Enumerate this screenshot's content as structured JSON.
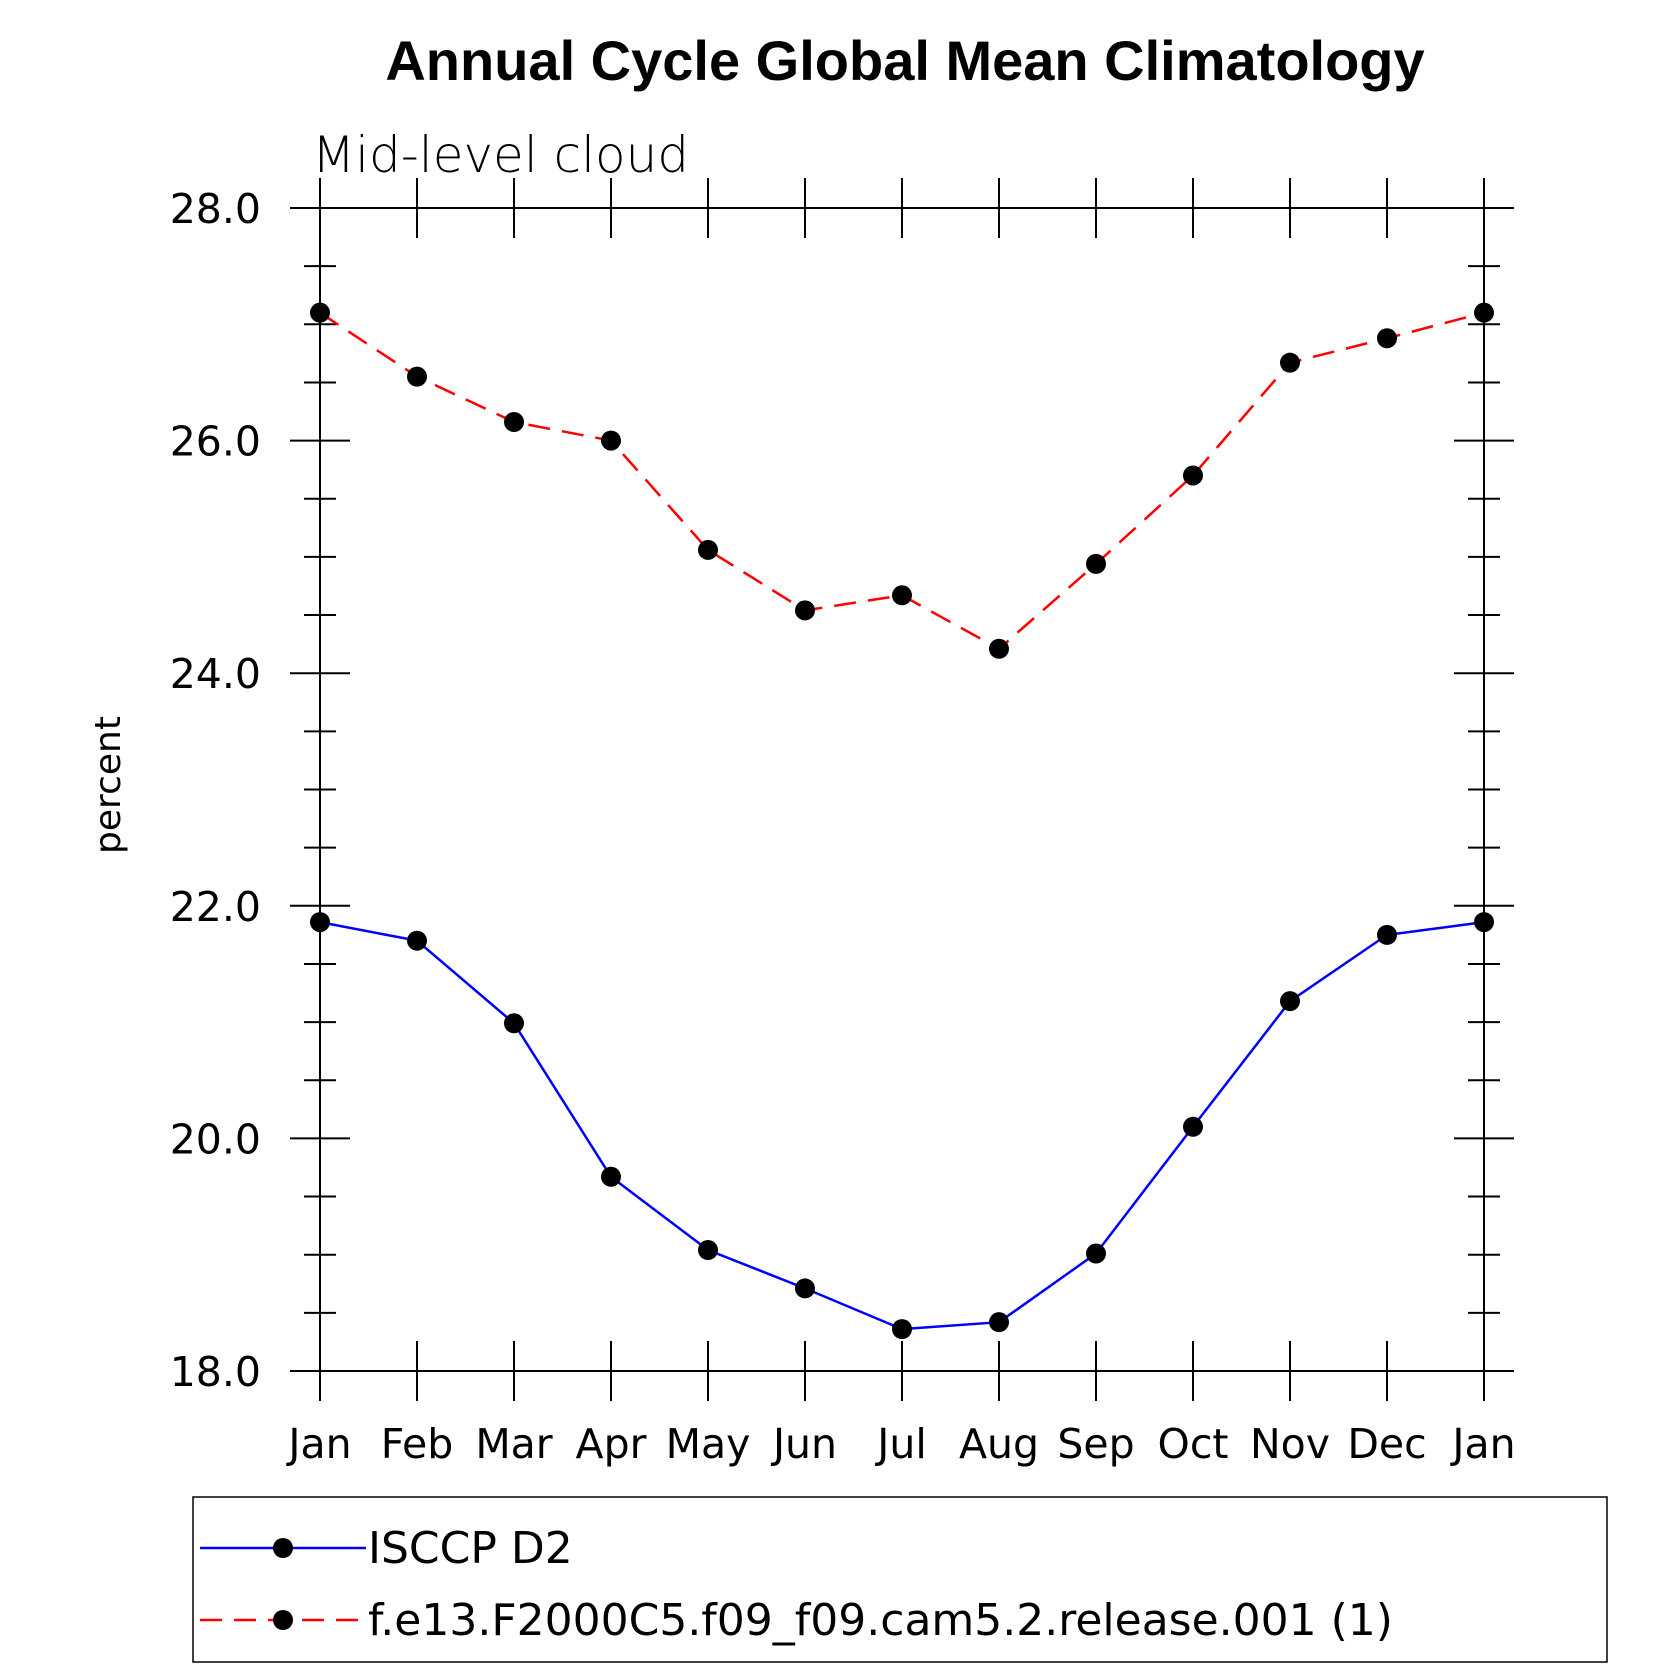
{
  "chart_data": {
    "type": "line",
    "title": "Annual Cycle Global Mean Climatology",
    "subtitle": "Mid-level cloud",
    "xlabel": "",
    "ylabel": "percent",
    "categories": [
      "Jan",
      "Feb",
      "Mar",
      "Apr",
      "May",
      "Jun",
      "Jul",
      "Aug",
      "Sep",
      "Oct",
      "Nov",
      "Dec",
      "Jan"
    ],
    "ylim": [
      18.0,
      28.0
    ],
    "yticks": [
      "18.0",
      "20.0",
      "22.0",
      "24.0",
      "26.0",
      "28.0"
    ],
    "grid": false,
    "legend_position": "bottom",
    "series": [
      {
        "name": "ISCCP D2",
        "color": "#0000ff",
        "line_style": "solid",
        "marker": "filled-circle",
        "values": [
          21.86,
          21.7,
          20.99,
          19.67,
          19.04,
          18.71,
          18.36,
          18.42,
          19.01,
          20.1,
          21.18,
          21.75,
          21.86
        ]
      },
      {
        "name": "f.e13.F2000C5.f09_f09.cam5.2.release.001 (1)",
        "color": "#ff0000",
        "line_style": "dashed",
        "marker": "filled-circle",
        "values": [
          27.1,
          26.55,
          26.16,
          26.0,
          25.06,
          24.54,
          24.67,
          24.21,
          24.94,
          25.7,
          26.67,
          26.88,
          27.1
        ]
      }
    ]
  }
}
